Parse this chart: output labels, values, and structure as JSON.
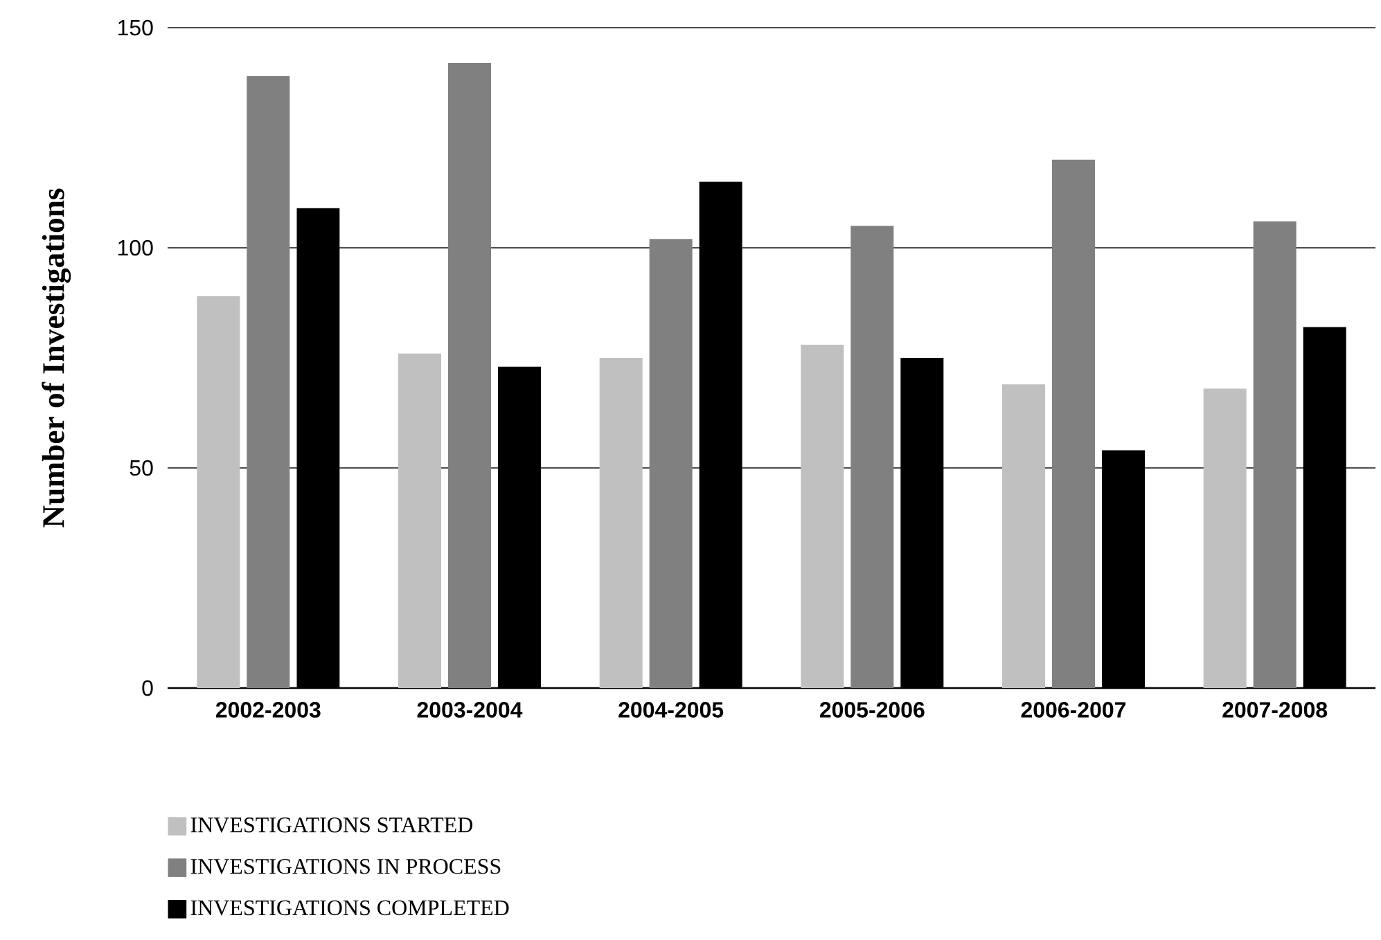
{
  "chart_data": {
    "type": "bar",
    "ylabel": "Number of Investigations",
    "categories": [
      "2002-2003",
      "2003-2004",
      "2004-2005",
      "2005-2006",
      "2006-2007",
      "2007-2008"
    ],
    "series": [
      {
        "name": "INVESTIGATIONS STARTED",
        "color": "#c0c0c0",
        "values": [
          89,
          76,
          75,
          78,
          69,
          68
        ]
      },
      {
        "name": "INVESTIGATIONS IN PROCESS",
        "color": "#808080",
        "values": [
          139,
          142,
          102,
          105,
          120,
          106
        ]
      },
      {
        "name": "INVESTIGATIONS COMPLETED",
        "color": "#000000",
        "values": [
          109,
          73,
          115,
          75,
          54,
          82
        ]
      }
    ],
    "ylim": [
      0,
      150
    ],
    "yticks": [
      0,
      50,
      100,
      150
    ],
    "grid": "y",
    "legend": "bottom"
  }
}
